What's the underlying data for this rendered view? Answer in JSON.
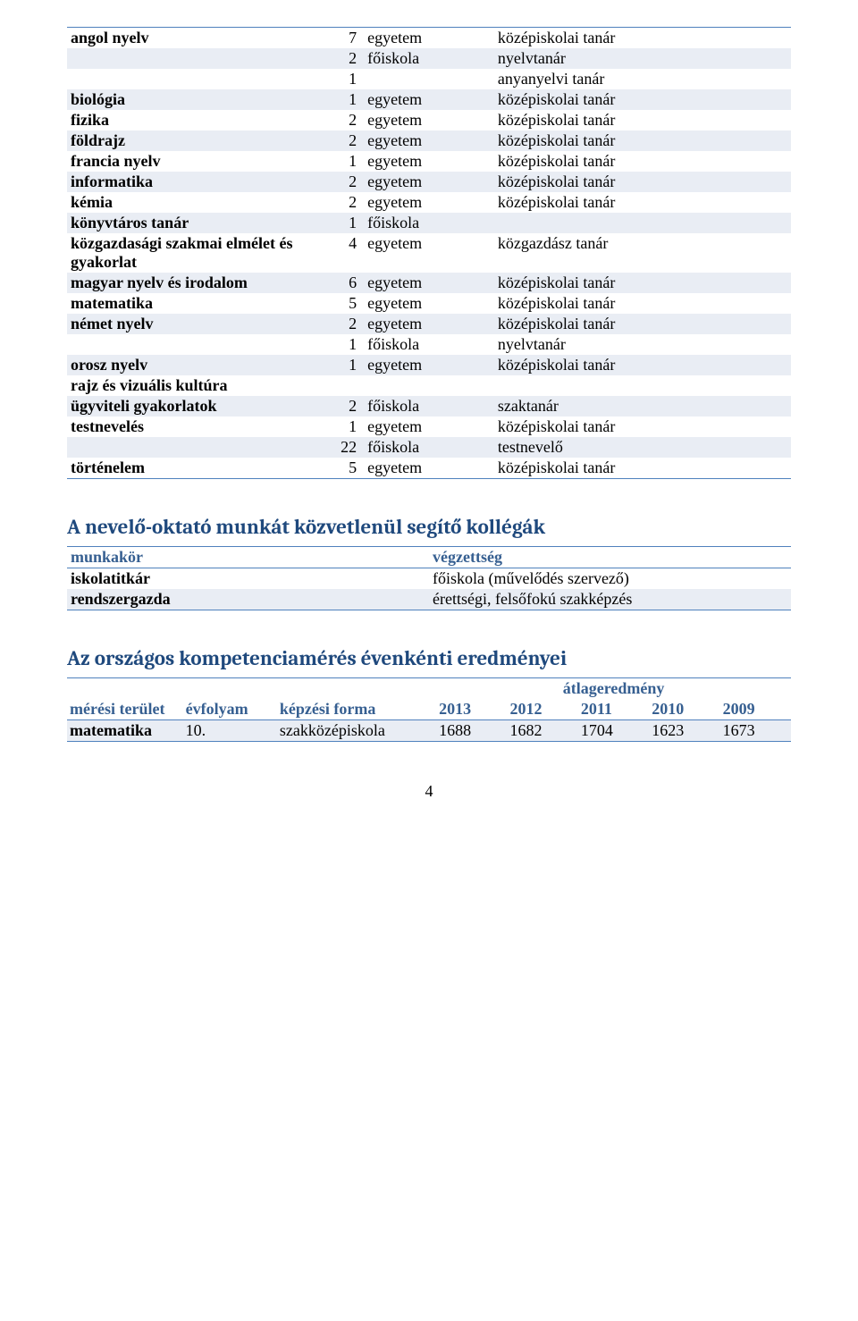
{
  "colors": {
    "heading": "#1f497d",
    "border": "#4f81bd",
    "alt_row": "#e9edf4",
    "background": "#ffffff",
    "text": "#000000"
  },
  "typography": {
    "body_font": "Times New Roman",
    "heading_font": "Cambria",
    "body_size_pt": 14,
    "heading_size_pt": 18
  },
  "table1": {
    "columns": [
      "subject",
      "count",
      "level",
      "role"
    ],
    "rows": [
      {
        "c0": "angol nyelv",
        "c1": "7",
        "c2": "egyetem",
        "c3": "középiskolai tanár",
        "bold0": true,
        "alt": false
      },
      {
        "c0": "",
        "c1": "2",
        "c2": "főiskola",
        "c3": "nyelvtanár",
        "alt": true
      },
      {
        "c0": "",
        "c1": "1",
        "c2": "",
        "c3": "anyanyelvi tanár",
        "alt": false
      },
      {
        "c0": "biológia",
        "c1": "1",
        "c2": "egyetem",
        "c3": "középiskolai tanár",
        "bold0": true,
        "alt": true
      },
      {
        "c0": "fizika",
        "c1": "2",
        "c2": "egyetem",
        "c3": "középiskolai tanár",
        "bold0": true,
        "alt": false
      },
      {
        "c0": "földrajz",
        "c1": "2",
        "c2": "egyetem",
        "c3": "középiskolai tanár",
        "bold0": true,
        "alt": true
      },
      {
        "c0": "francia nyelv",
        "c1": "1",
        "c2": "egyetem",
        "c3": "középiskolai tanár",
        "bold0": true,
        "alt": false
      },
      {
        "c0": "informatika",
        "c1": "2",
        "c2": "egyetem",
        "c3": "középiskolai tanár",
        "bold0": true,
        "alt": true
      },
      {
        "c0": "kémia",
        "c1": "2",
        "c2": "egyetem",
        "c3": "középiskolai tanár",
        "bold0": true,
        "alt": false
      },
      {
        "c0": "könyvtáros tanár",
        "c1": "1",
        "c2": "főiskola",
        "c3": "",
        "bold0": true,
        "alt": true
      },
      {
        "c0": "közgazdasági szakmai elmélet és gyakorlat",
        "c1": "4",
        "c2": "egyetem",
        "c3": "közgazdász tanár",
        "bold0": true,
        "alt": false
      },
      {
        "c0": "magyar nyelv és irodalom",
        "c1": "6",
        "c2": "egyetem",
        "c3": "középiskolai tanár",
        "bold0": true,
        "alt": true
      },
      {
        "c0": "matematika",
        "c1": "5",
        "c2": "egyetem",
        "c3": "középiskolai tanár",
        "bold0": true,
        "alt": false
      },
      {
        "c0": "német nyelv",
        "c1": "2",
        "c2": "egyetem",
        "c3": "középiskolai tanár",
        "bold0": true,
        "alt": true
      },
      {
        "c0": "",
        "c1": "1",
        "c2": "főiskola",
        "c3": "nyelvtanár",
        "alt": false
      },
      {
        "c0": "orosz nyelv",
        "c1": "1",
        "c2": "egyetem",
        "c3": "középiskolai tanár",
        "bold0": true,
        "alt": true
      },
      {
        "c0": "rajz és vizuális kultúra",
        "c1": "",
        "c2": "",
        "c3": "",
        "bold0": true,
        "alt": false
      },
      {
        "c0": "ügyviteli gyakorlatok",
        "c1": "2",
        "c2": "főiskola",
        "c3": "szaktanár",
        "bold0": true,
        "alt": true
      },
      {
        "c0": "testnevelés",
        "c1": "1",
        "c2": "egyetem",
        "c3": "középiskolai tanár",
        "bold0": true,
        "alt": false
      },
      {
        "c0": "",
        "c1": "22",
        "c2": "főiskola",
        "c3": "testnevelő",
        "alt": true
      },
      {
        "c0": "történelem",
        "c1": "5",
        "c2": "egyetem",
        "c3": "középiskolai tanár",
        "bold0": true,
        "alt": false
      }
    ]
  },
  "section2": {
    "title": "A nevelő-oktató munkát közvetlenül segítő kollégák",
    "header": {
      "c0": "munkakör",
      "c1": "végzettség"
    },
    "rows": [
      {
        "c0": "iskolatitkár",
        "c1": "főiskola (művelődés szervező)",
        "alt": false
      },
      {
        "c0": "rendszergazda",
        "c1": "érettségi, felsőfokú szakképzés",
        "alt": true
      }
    ]
  },
  "section3": {
    "title": "Az országos kompetenciamérés évenkénti eredményei",
    "top_label": "átlageredmény",
    "header": [
      "mérési terület",
      "évfolyam",
      "képzési forma",
      "2013",
      "2012",
      "2011",
      "2010",
      "2009"
    ],
    "rows": [
      {
        "cells": [
          "matematika",
          "10.",
          "szakközépiskola",
          "1688",
          "1682",
          "1704",
          "1623",
          "1673"
        ],
        "bold0": true,
        "alt": true
      }
    ]
  },
  "page_number": "4"
}
